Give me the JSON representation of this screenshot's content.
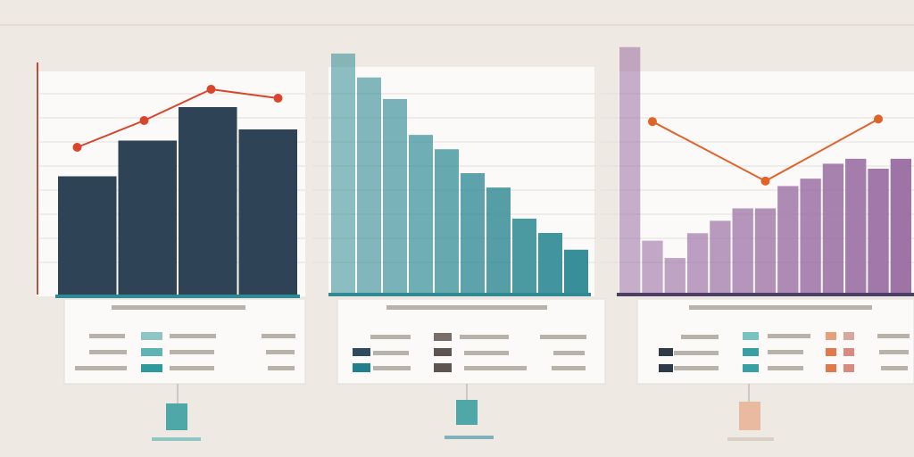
{
  "chart_data": [
    {
      "type": "bar",
      "values": [
        53,
        69,
        84,
        74
      ],
      "color": "#2e4356",
      "line": [
        66,
        78,
        92,
        88
      ],
      "line_color": "#d9452b",
      "ylim": [
        0,
        100
      ]
    },
    {
      "type": "bar",
      "values": [
        100,
        90,
        81,
        66,
        60,
        50,
        44,
        31,
        25,
        18
      ],
      "color": "#2f8a94",
      "ylim": [
        0,
        100
      ]
    },
    {
      "type": "bar",
      "values": [
        99,
        21,
        14,
        24,
        29,
        34,
        34,
        43,
        46,
        52,
        54,
        50,
        54
      ],
      "color": "#9a6ea3",
      "line": [
        69,
        45,
        70
      ],
      "line_color": "#e0642a",
      "ylim": [
        0,
        100
      ]
    }
  ]
}
